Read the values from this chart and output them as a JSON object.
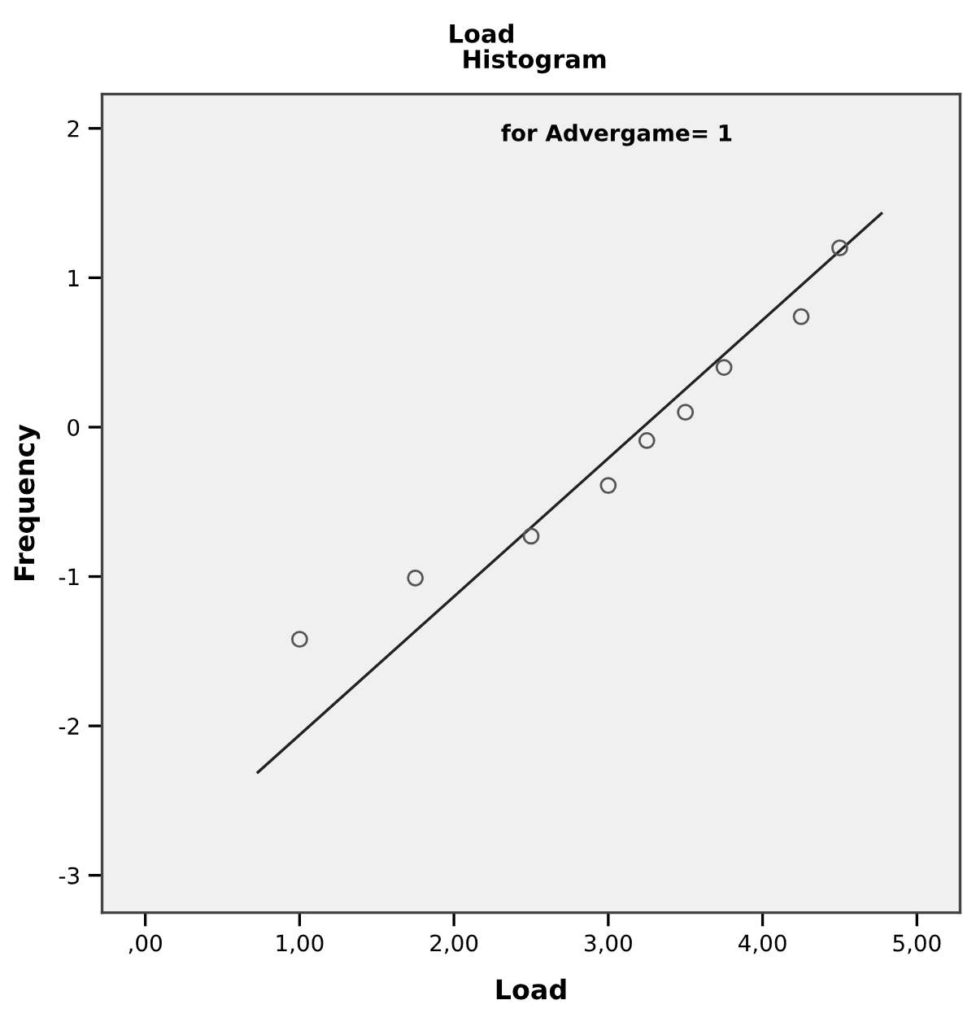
{
  "chart_data": {
    "type": "scatter",
    "title": "Load",
    "subtitle": "Histogram",
    "xlabel": "Load",
    "ylabel": "Frequency",
    "annotations": [
      "for Advergame= 1"
    ],
    "series": [
      {
        "color": "#555555",
        "x": [
          1.0,
          1.75,
          2.5,
          3.0,
          3.25,
          3.5,
          3.75,
          4.25,
          4.5
        ],
        "values": [
          -1.42,
          -1.01,
          -0.73,
          -0.39,
          -0.09,
          0.1,
          0.4,
          0.74,
          1.2
        ],
        "marker": "circle"
      },
      {
        "type": "line",
        "color": "#222222",
        "x": [
          0.73,
          4.77
        ],
        "values": [
          -2.31,
          1.43
        ],
        "marker": "none",
        "line_style": "solid"
      }
    ],
    "xlim": [
      -0.28,
      5.28
    ],
    "ylim": [
      -3.25,
      2.23
    ],
    "xticks": [
      {
        "value": 0,
        "label": ",00"
      },
      {
        "value": 1,
        "label": "1,00"
      },
      {
        "value": 2,
        "label": "2,00"
      },
      {
        "value": 3,
        "label": "3,00"
      },
      {
        "value": 4,
        "label": "4,00"
      },
      {
        "value": 5,
        "label": "5,00"
      }
    ],
    "yticks": [
      -3,
      -2,
      -1,
      0,
      1,
      2
    ],
    "grid": false,
    "legend": false
  }
}
